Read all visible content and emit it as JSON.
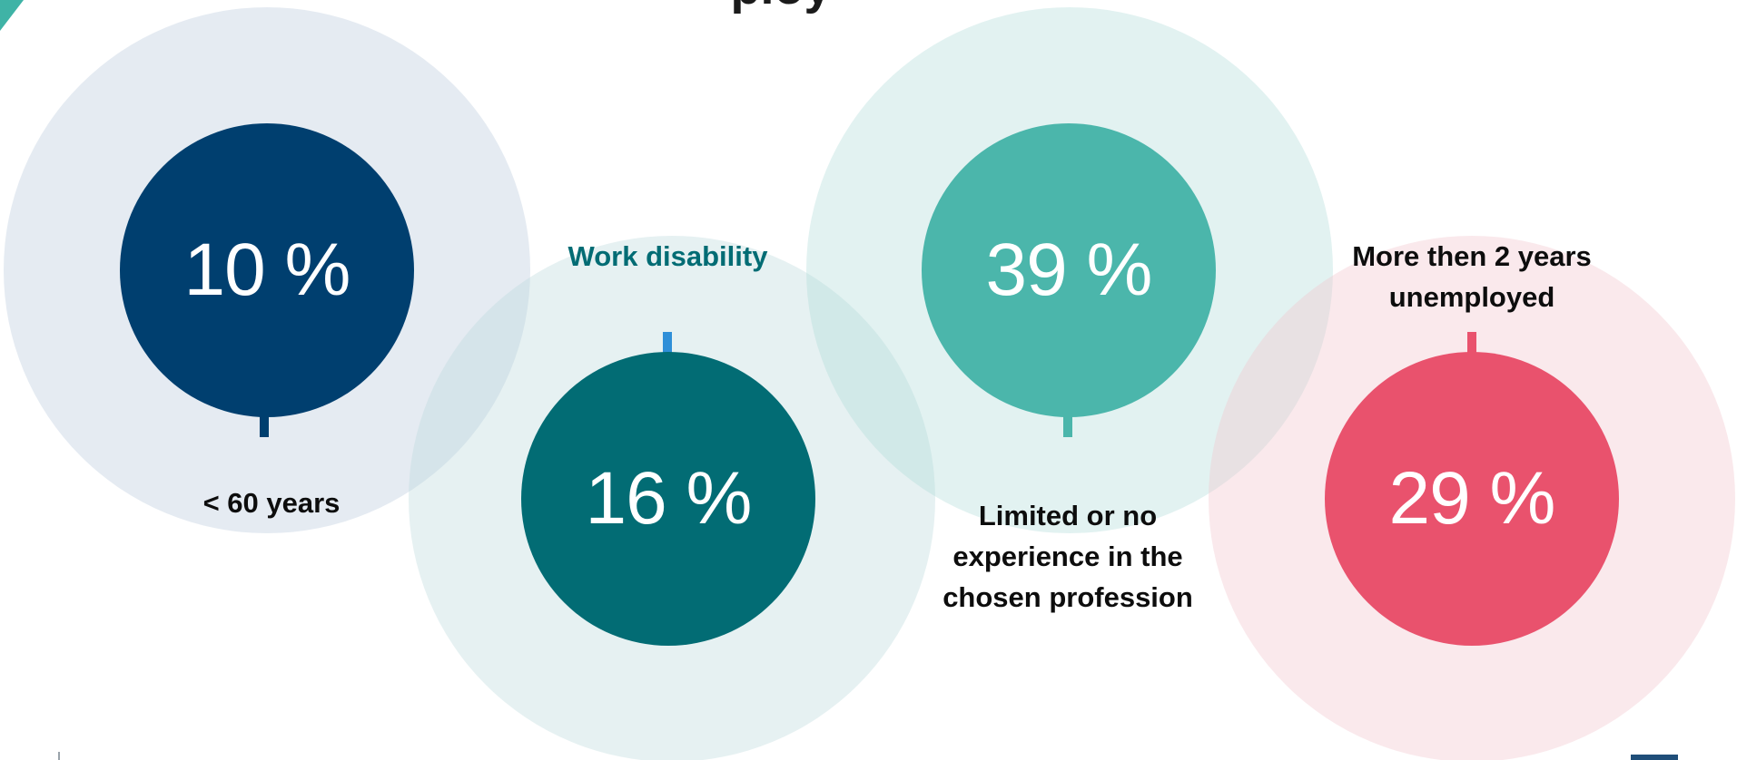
{
  "slide": {
    "title_fragment": "ploy",
    "colors": {
      "navy": "#003f6f",
      "teal_dark": "#026c74",
      "teal_light": "#4bb6ab",
      "coral": "#e9526d",
      "stem_blue": "#2f8fd8"
    }
  },
  "indicators": [
    {
      "value": "10 %",
      "label_lines": [
        "< 60 years"
      ],
      "color": "#003f6f"
    },
    {
      "value": "16 %",
      "label_lines": [
        "Work disability"
      ],
      "color": "#026c74"
    },
    {
      "value": "39 %",
      "label_lines": [
        "Limited or no",
        "experience in the",
        "chosen profession"
      ],
      "color": "#4bb6ab"
    },
    {
      "value": "29 %",
      "label_lines": [
        "More then 2 years",
        "unemployed"
      ],
      "color": "#e9526d"
    }
  ]
}
